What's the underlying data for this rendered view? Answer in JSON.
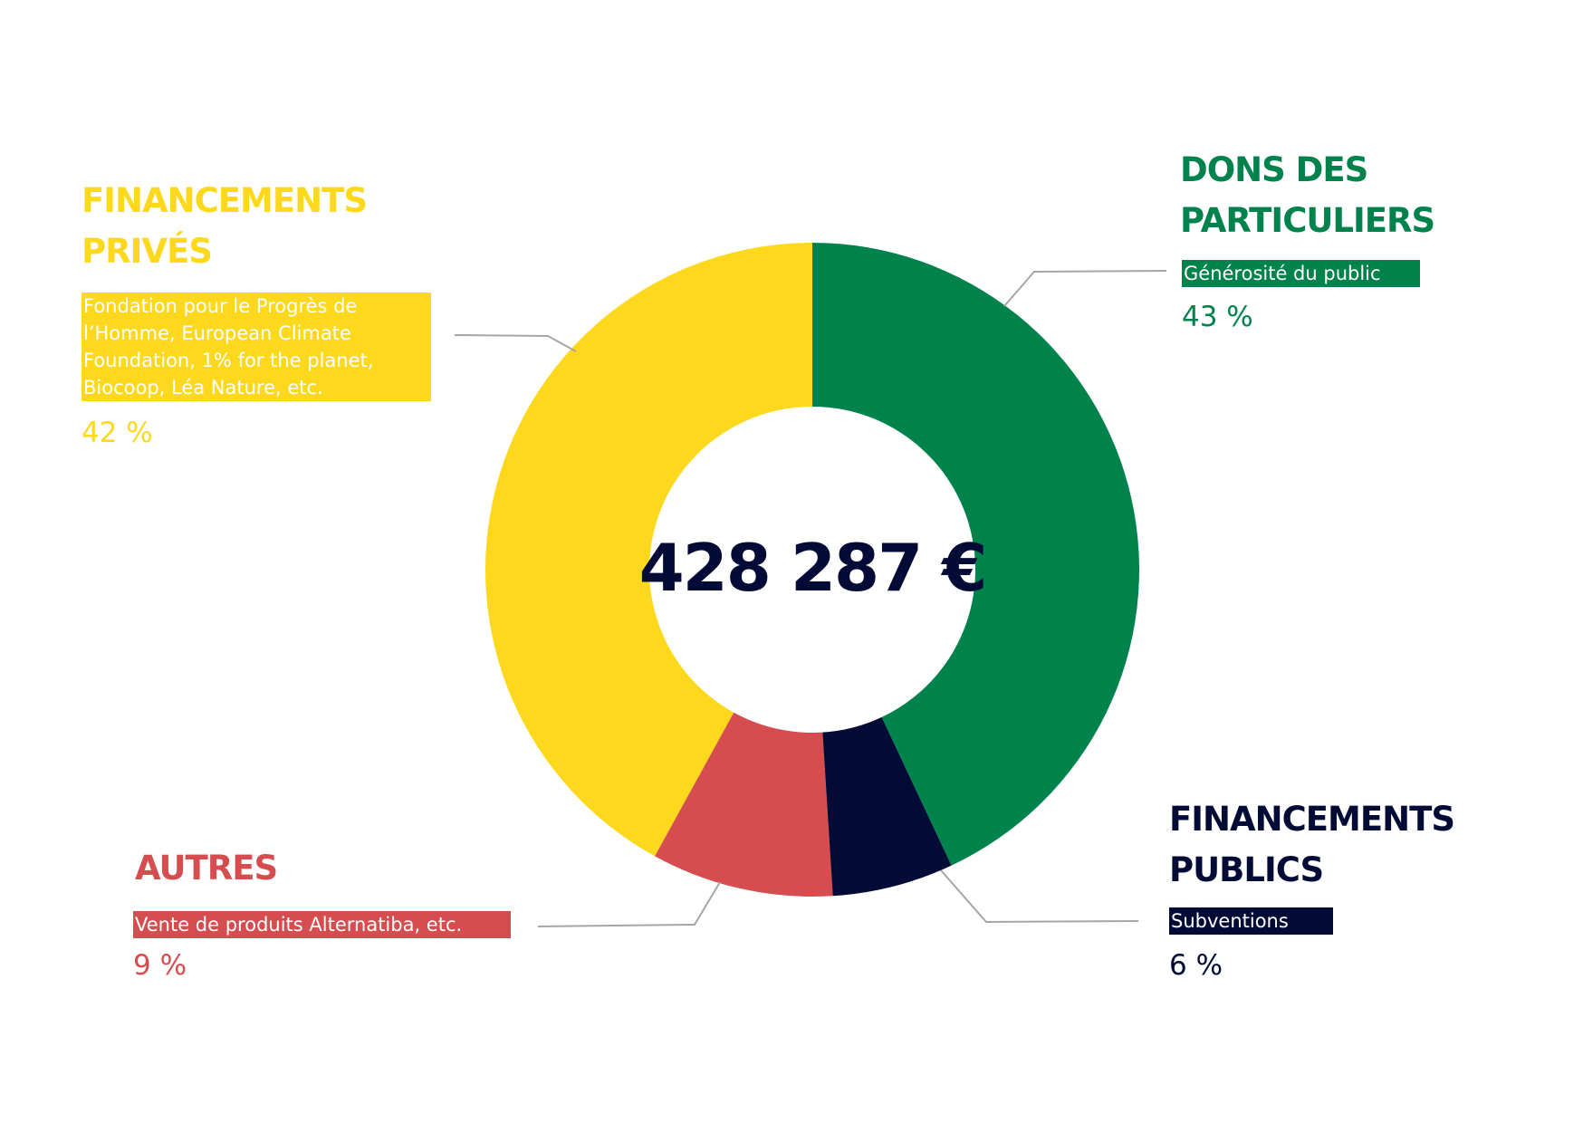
{
  "chart_data": {
    "type": "donut",
    "center_label": "428 287 €",
    "categories": [
      "DONS DES PARTICULIERS",
      "FINANCEMENTS PUBLICS",
      "AUTRES",
      "FINANCEMENTS PRIVÉS"
    ],
    "descriptions": [
      "Générosité du public",
      "Subventions",
      "Vente de produits Alternatiba, etc.",
      "Fondation pour le Progrès de l’Homme, European Climate Foundation, 1% for the planet, Biocoop, Léa Nature, etc."
    ],
    "values": [
      43,
      6,
      9,
      42
    ],
    "value_labels": [
      "43 %",
      "6 %",
      "9 %",
      "42 %"
    ],
    "colors": [
      "#00824d",
      "#020b35",
      "#d64d4f",
      "#fdd81c"
    ]
  }
}
